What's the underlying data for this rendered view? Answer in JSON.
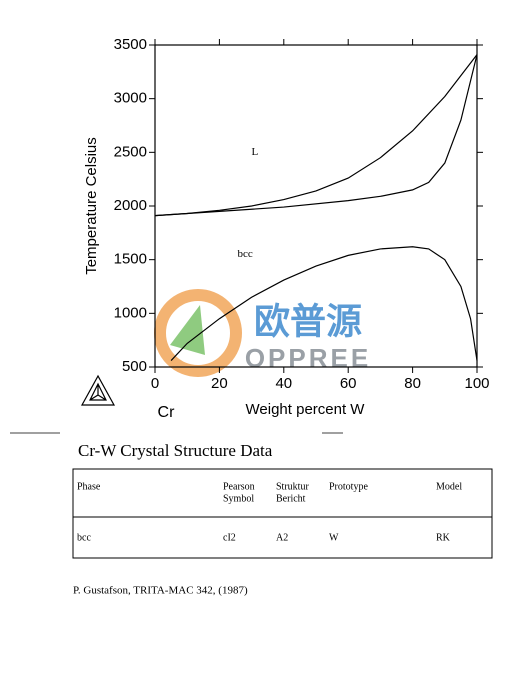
{
  "chart_data": {
    "type": "line",
    "ylabel": "Temperature Celsius",
    "xlabel": "Weight percent W",
    "xlim": [
      0,
      100
    ],
    "xticks": [
      0,
      20,
      40,
      60,
      80,
      100
    ],
    "ylim": [
      500,
      3500
    ],
    "yticks": [
      500,
      1000,
      1500,
      2000,
      2500,
      3000,
      3500
    ],
    "series": [
      {
        "color": "#000000",
        "x": [
          0,
          10,
          20,
          30,
          40,
          50,
          60,
          70,
          80,
          90,
          100
        ],
        "values": [
          1910,
          1930,
          1960,
          2000,
          2060,
          2140,
          2260,
          2450,
          2700,
          3020,
          3410
        ]
      },
      {
        "color": "#000000",
        "x": [
          0,
          20,
          40,
          60,
          70,
          80,
          85,
          90,
          95,
          100
        ],
        "values": [
          1910,
          1950,
          1990,
          2050,
          2090,
          2150,
          2220,
          2400,
          2800,
          3410
        ]
      },
      {
        "color": "#000000",
        "x": [
          5,
          10,
          20,
          30,
          40,
          50,
          60,
          70,
          80,
          85,
          90,
          95,
          98,
          100
        ],
        "values": [
          560,
          720,
          950,
          1150,
          1310,
          1440,
          1540,
          1600,
          1620,
          1600,
          1500,
          1250,
          950,
          560
        ]
      }
    ],
    "annotations": [
      {
        "text": "L",
        "x": 31,
        "y": 2500
      },
      {
        "text": "bcc",
        "x": 28,
        "y": 1550
      }
    ],
    "element": "Cr",
    "watermark": [
      "欧普源",
      "OPPREE"
    ]
  },
  "table": {
    "title": "Cr-W Crystal Structure Data",
    "headers": [
      [
        "Phase"
      ],
      [
        "Pearson",
        "Symbol"
      ],
      [
        "Struktur",
        "Bericht"
      ],
      [
        "Prototype"
      ],
      [
        "Model"
      ]
    ],
    "rows": [
      [
        "bcc",
        "cI2",
        "A2",
        "W",
        "RK"
      ]
    ]
  },
  "footnote": "P. Gustafson, TRITA-MAC 342, (1987)"
}
